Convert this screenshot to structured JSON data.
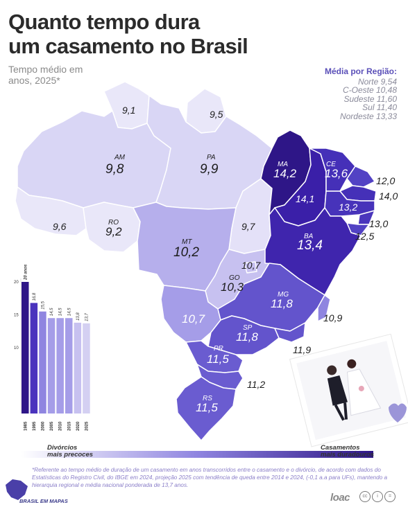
{
  "title": {
    "line1": "Quanto tempo dura",
    "line2": "um casamento no Brasil"
  },
  "subtitle": {
    "line1": "Tempo médio em",
    "line2": "anos, 2025*"
  },
  "regional_averages": {
    "title": "Média por Região:",
    "items": [
      "Norte 9,54",
      "C-Oeste 10,48",
      "Sudeste 11,60",
      "Sul 11,40",
      "Nordeste 13,33"
    ]
  },
  "states": {
    "AM": {
      "abbr": "AM",
      "value": "9,8"
    },
    "PA": {
      "abbr": "PA",
      "value": "9,9"
    },
    "RR": {
      "value": "9,1"
    },
    "AP": {
      "value": "9,5"
    },
    "AC": {
      "value": "9,6"
    },
    "RO": {
      "abbr": "RO",
      "value": "9,2"
    },
    "MT": {
      "abbr": "MT",
      "value": "10,2"
    },
    "TO": {
      "value": "9,7"
    },
    "MA": {
      "abbr": "MA",
      "value": "14,2"
    },
    "CE": {
      "abbr": "CE",
      "value": "13,6"
    },
    "PI": {
      "value": "14,1"
    },
    "RN": {
      "value": "12,0"
    },
    "PB": {
      "value": "14,0"
    },
    "PE": {
      "value": "13,2"
    },
    "AL": {
      "value": "13,0"
    },
    "SE": {
      "value": "12,5"
    },
    "BA": {
      "abbr": "BA",
      "value": "13,4"
    },
    "DF": {
      "value": "10,7"
    },
    "GO": {
      "abbr": "GO",
      "value": "10,3"
    },
    "MG": {
      "abbr": "MG",
      "value": "11,8"
    },
    "ES": {
      "value": "10,9"
    },
    "MS": {
      "value": "10,7"
    },
    "SP": {
      "abbr": "SP",
      "value": "11,8"
    },
    "RJ": {
      "value": "11,9"
    },
    "PR": {
      "abbr": "PR",
      "value": "11,5"
    },
    "SC": {
      "value": "11,2"
    },
    "RS": {
      "abbr": "RS",
      "value": "11,5"
    }
  },
  "colors": {
    "lightest": "#e8e6f8",
    "light": "#d4d0f2",
    "mid_light": "#b3aceb",
    "mid": "#8f85e0",
    "mid_dark": "#6a5cd0",
    "dark": "#4a33bd",
    "darker": "#3a1fa8",
    "darkest": "#2e1687"
  },
  "chart_data": {
    "type": "bar",
    "title": "",
    "categories": [
      "1985",
      "1995",
      "2000",
      "2005",
      "2010",
      "2015",
      "2020",
      "2025"
    ],
    "values": [
      20,
      16.8,
      15.5,
      14.5,
      14.5,
      14.5,
      13.8,
      13.7
    ],
    "value_labels": [
      "20 anos",
      "16,8",
      "15,5",
      "14,5",
      "14,5",
      "14,5",
      "13,8",
      "13,7"
    ],
    "y_ticks": [
      "20",
      "15",
      "10"
    ],
    "ylim": [
      0,
      20
    ]
  },
  "legend": {
    "left": "Divórcios\nmais precoces",
    "left_line1": "Divórcios",
    "left_line2": "mais precoces",
    "right_line1": "Casamentos",
    "right_line2": "mais duradouros"
  },
  "footnote": "*Referente ao tempo médio de duração de um casamento em anos transcorridos entre o casamento e o divórcio, de acordo com dados do Estatísticas do Registro Civil, do IBGE em 2024, projeção 2025 com tendência de queda entre 2014 e 2024, (-0,1 a.a para UFs), mantendo a hierarquia regional e média nacional ponderada de 13,7 anos.",
  "brand": "BRASIL EM MAPAS",
  "publisher": "loac"
}
